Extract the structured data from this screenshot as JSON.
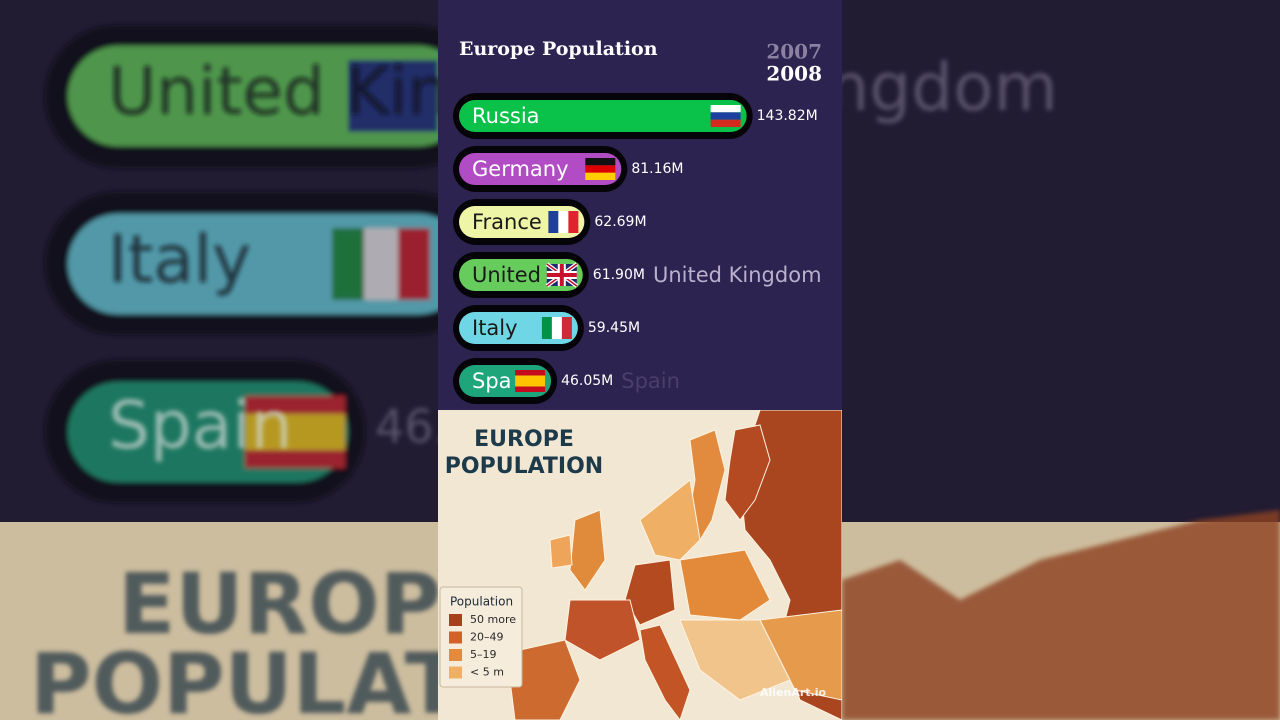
{
  "chart_data": {
    "type": "bar",
    "orientation": "horizontal",
    "title": "Europe Population",
    "year_previous": "2007",
    "year": "2008",
    "categories": [
      "Russia",
      "Germany",
      "France",
      "United Kingdom",
      "Italy",
      "Spain"
    ],
    "values": [
      143.82,
      81.16,
      62.69,
      61.9,
      59.45,
      46.05
    ],
    "value_labels": [
      "143.82M",
      "81.16M",
      "62.69M",
      "61.90M",
      "59.45M",
      "46.05M"
    ],
    "colors": [
      "#0ac24a",
      "#b24cc4",
      "#eef5a6",
      "#66cc5c",
      "#6fd6e6",
      "#1fa57a"
    ]
  },
  "map": {
    "title_lines": [
      "EUROPE",
      "POPULATION"
    ],
    "legend_title": "Population",
    "legend_items": [
      {
        "label": "50 more",
        "color": "#a7401f"
      },
      {
        "label": "20–49",
        "color": "#d2622a"
      },
      {
        "label": "5–19",
        "color": "#e28b3e"
      },
      {
        "label": "< 5 m",
        "color": "#efb066"
      }
    ],
    "watermark": "AlienArt.io"
  }
}
